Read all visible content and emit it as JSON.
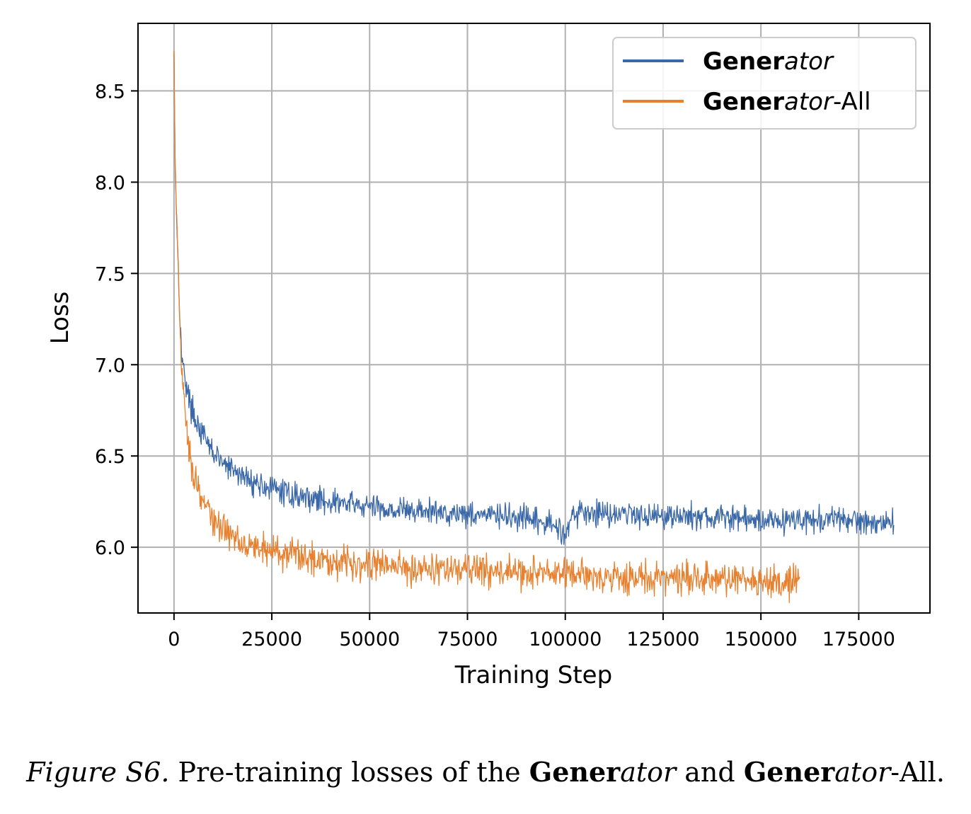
{
  "chart_data": {
    "type": "line",
    "xlabel": "Training Step",
    "ylabel": "Loss",
    "xlim": [
      -9200,
      193200
    ],
    "ylim": [
      5.64,
      8.87
    ],
    "xticks": [
      0,
      25000,
      50000,
      75000,
      100000,
      125000,
      150000,
      175000
    ],
    "xtick_labels": [
      "0",
      "25000",
      "50000",
      "75000",
      "100000",
      "125000",
      "150000",
      "175000"
    ],
    "yticks": [
      6.0,
      6.5,
      7.0,
      7.5,
      8.0,
      8.5
    ],
    "ytick_labels": [
      "6.0",
      "6.5",
      "7.0",
      "7.5",
      "8.0",
      "8.5"
    ],
    "grid": true,
    "legend_position": "top-right",
    "series": [
      {
        "name_bold": "Gener",
        "name_italic": "ator",
        "name_suffix": "",
        "color": "#3a68a8",
        "noise": 0.035,
        "x": [
          0,
          300,
          600,
          1000,
          1500,
          2000,
          3000,
          4000,
          5000,
          7500,
          10000,
          12500,
          15000,
          20000,
          25000,
          30000,
          40000,
          50000,
          60000,
          70000,
          80000,
          90000,
          97000,
          100000,
          101500,
          104000,
          110000,
          120000,
          130000,
          140000,
          150000,
          160000,
          170000,
          180000,
          184000
        ],
        "y": [
          8.7,
          8.1,
          7.85,
          7.6,
          7.25,
          7.05,
          6.9,
          6.8,
          6.73,
          6.6,
          6.52,
          6.46,
          6.42,
          6.36,
          6.32,
          6.29,
          6.25,
          6.22,
          6.2,
          6.19,
          6.18,
          6.15,
          6.12,
          6.08,
          6.17,
          6.19,
          6.19,
          6.18,
          6.17,
          6.16,
          6.15,
          6.15,
          6.15,
          6.14,
          6.14
        ]
      },
      {
        "name_bold": "Gener",
        "name_italic": "ator",
        "name_suffix": "-All",
        "color": "#e8812f",
        "noise": 0.045,
        "x": [
          0,
          300,
          600,
          1000,
          1500,
          2000,
          3000,
          4000,
          5000,
          7500,
          10000,
          12500,
          15000,
          20000,
          25000,
          30000,
          40000,
          50000,
          60000,
          70000,
          80000,
          90000,
          100000,
          110000,
          120000,
          130000,
          140000,
          150000,
          160000
        ],
        "y": [
          8.7,
          8.1,
          7.85,
          7.6,
          7.2,
          6.95,
          6.7,
          6.52,
          6.4,
          6.25,
          6.15,
          6.1,
          6.06,
          6.01,
          5.98,
          5.96,
          5.93,
          5.91,
          5.89,
          5.88,
          5.87,
          5.86,
          5.85,
          5.84,
          5.83,
          5.83,
          5.82,
          5.82,
          5.82
        ]
      }
    ]
  },
  "caption": {
    "figure_label": "Figure S6.",
    "text_1": " Pre-training losses of the ",
    "bold_1": "Gener",
    "italic_1": "ator",
    "text_2": " and ",
    "bold_2": "Gener",
    "italic_2": "ator",
    "text_3": "-All."
  }
}
